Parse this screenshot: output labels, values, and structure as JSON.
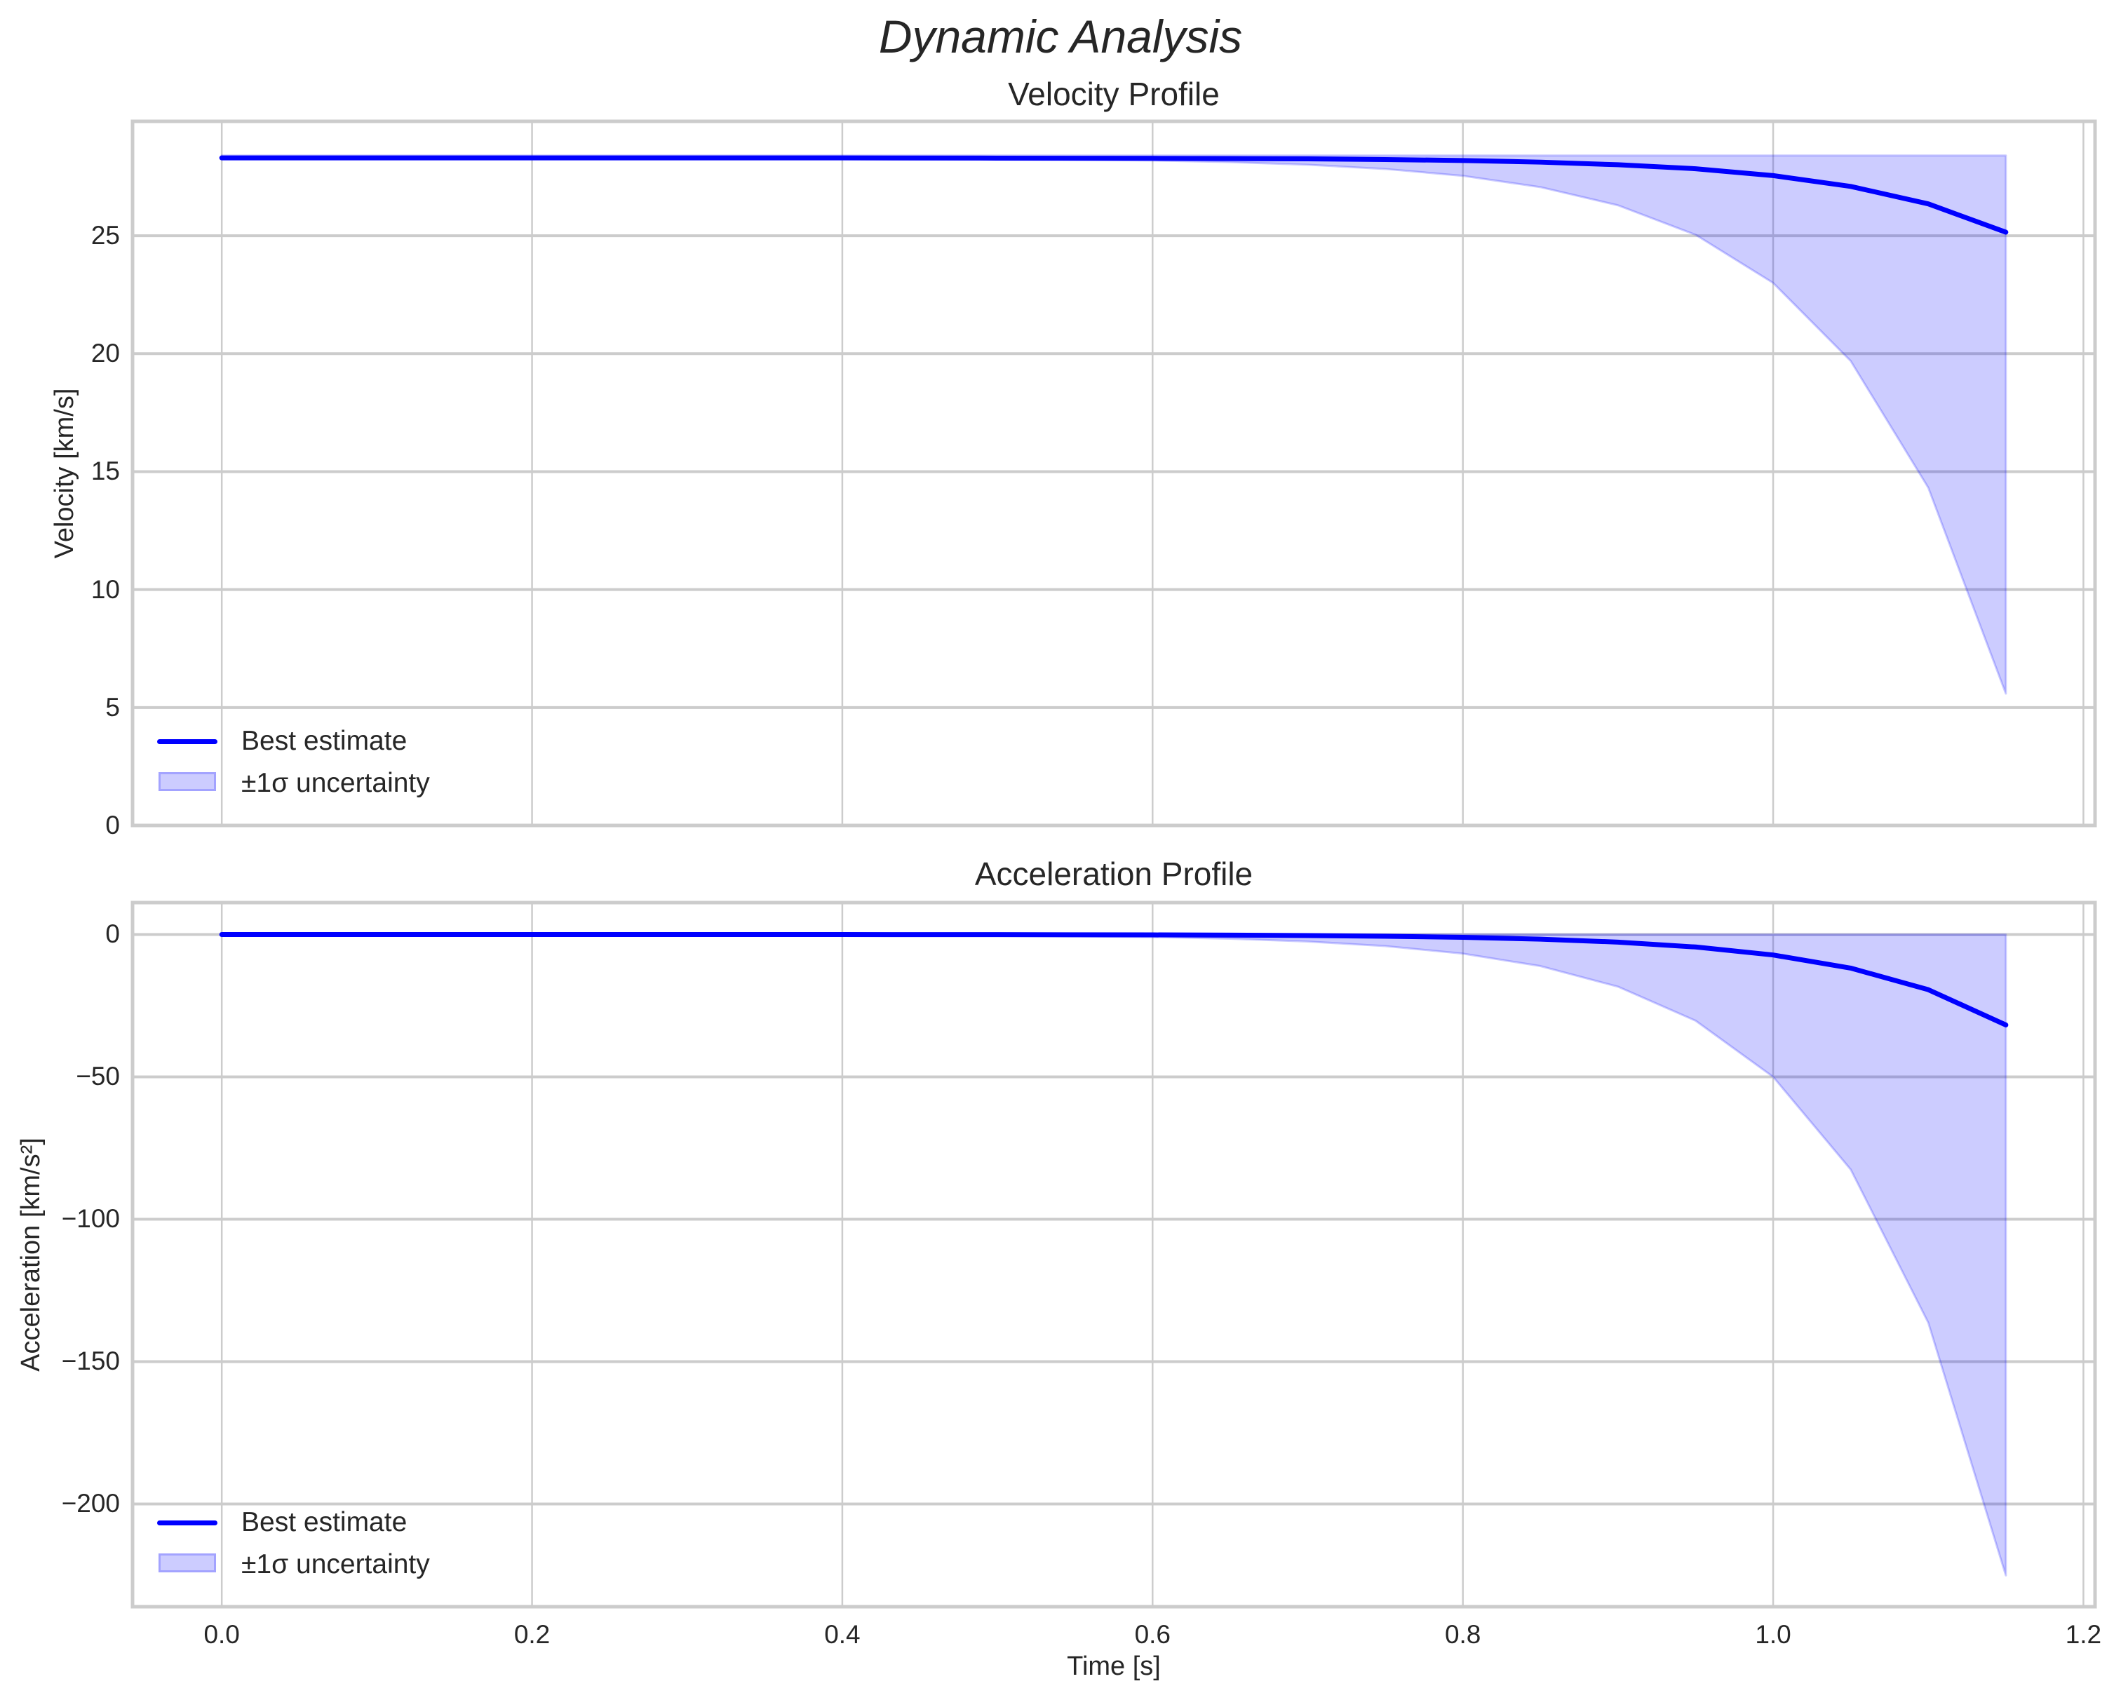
{
  "figure": {
    "title": "Dynamic Analysis",
    "colors": {
      "line": "#0000ff",
      "band_fill": "rgba(0,0,255,0.2)",
      "grid": "#cccccc",
      "spine": "#cccccc",
      "text": "#262626",
      "background": "#ffffff"
    }
  },
  "chart_data": [
    {
      "type": "line",
      "title": "Velocity Profile",
      "xlabel": "",
      "ylabel": "Velocity [km/s]",
      "xlim": [
        -0.0575,
        1.2075
      ],
      "ylim": [
        0,
        29.85
      ],
      "xticks": [
        0.0,
        0.2,
        0.4,
        0.6,
        0.8,
        1.0,
        1.2
      ],
      "xtick_labels": [
        "",
        "",
        "",
        "",
        "",
        "",
        ""
      ],
      "yticks": [
        0,
        5,
        10,
        15,
        20,
        25
      ],
      "ytick_labels": [
        "0",
        "5",
        "10",
        "15",
        "20",
        "25"
      ],
      "grid": true,
      "legend": {
        "position": "lower left",
        "entries": [
          "Best estimate",
          "±1σ uncertainty"
        ]
      },
      "x": [
        0.0,
        0.1,
        0.2,
        0.3,
        0.4,
        0.5,
        0.6,
        0.65,
        0.7,
        0.75,
        0.8,
        0.85,
        0.9,
        0.95,
        1.0,
        1.05,
        1.1,
        1.15
      ],
      "series": [
        {
          "name": "Best estimate",
          "kind": "line",
          "values": [
            28.3,
            28.3,
            28.3,
            28.3,
            28.3,
            28.29,
            28.28,
            28.27,
            28.26,
            28.23,
            28.19,
            28.12,
            28.01,
            27.84,
            27.55,
            27.09,
            26.35,
            25.15
          ]
        },
        {
          "name": "±1σ uncertainty",
          "kind": "band",
          "upper": [
            28.4,
            28.4,
            28.4,
            28.4,
            28.4,
            28.4,
            28.4,
            28.4,
            28.4,
            28.4,
            28.4,
            28.4,
            28.4,
            28.4,
            28.4,
            28.4,
            28.4,
            28.4
          ],
          "lower": [
            28.3,
            28.3,
            28.3,
            28.29,
            28.28,
            28.26,
            28.19,
            28.12,
            28.01,
            27.83,
            27.54,
            27.06,
            26.29,
            25.04,
            23.0,
            19.69,
            14.32,
            5.59
          ]
        }
      ]
    },
    {
      "type": "line",
      "title": "Acceleration Profile",
      "xlabel": "Time [s]",
      "ylabel": "Acceleration [km/s²]",
      "xlim": [
        -0.0575,
        1.2075
      ],
      "ylim": [
        -236.1,
        11.2
      ],
      "xticks": [
        0.0,
        0.2,
        0.4,
        0.6,
        0.8,
        1.0,
        1.2
      ],
      "xtick_labels": [
        "0.0",
        "0.2",
        "0.4",
        "0.6",
        "0.8",
        "1.0",
        "1.2"
      ],
      "yticks": [
        0,
        -50,
        -100,
        -150,
        -200
      ],
      "ytick_labels": [
        "0",
        "−50",
        "−100",
        "−150",
        "−200"
      ],
      "grid": true,
      "legend": {
        "position": "lower left",
        "entries": [
          "Best estimate",
          "±1σ uncertainty"
        ]
      },
      "x": [
        0.0,
        0.1,
        0.2,
        0.3,
        0.4,
        0.5,
        0.6,
        0.65,
        0.7,
        0.75,
        0.8,
        0.85,
        0.9,
        0.95,
        1.0,
        1.05,
        1.1,
        1.15
      ],
      "series": [
        {
          "name": "Best estimate",
          "kind": "line",
          "values": [
            0.0,
            0.0,
            0.0,
            -0.01,
            -0.02,
            -0.05,
            -0.14,
            -0.22,
            -0.37,
            -0.61,
            -0.99,
            -1.63,
            -2.68,
            -4.39,
            -7.2,
            -11.81,
            -19.38,
            -31.78
          ]
        },
        {
          "name": "±1σ uncertainty",
          "kind": "band",
          "upper": [
            0,
            0,
            0,
            0,
            0,
            0,
            0,
            0,
            0,
            0,
            0,
            0,
            0,
            0,
            0,
            0,
            0,
            0
          ],
          "lower": [
            0.0,
            -0.01,
            -0.02,
            -0.04,
            -0.12,
            -0.33,
            -0.9,
            -1.5,
            -2.47,
            -4.07,
            -6.73,
            -11.1,
            -18.34,
            -30.28,
            -50.0,
            -82.55,
            -136.33,
            -225.1
          ]
        }
      ]
    }
  ]
}
